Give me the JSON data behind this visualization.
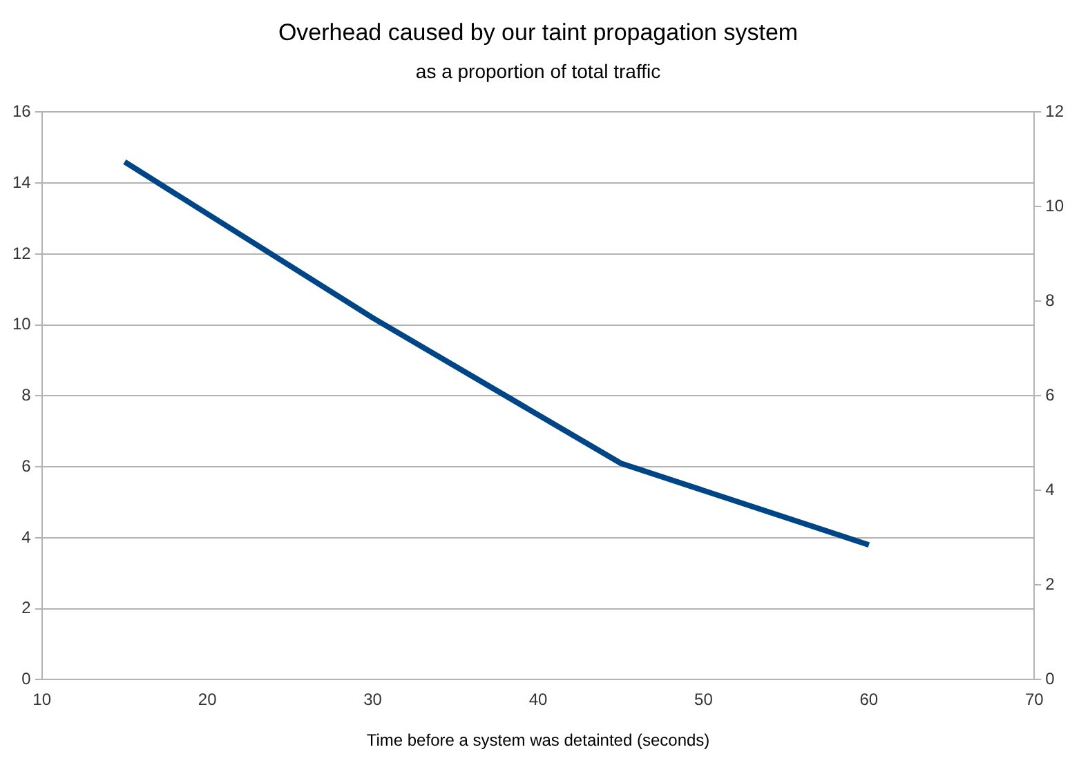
{
  "chart_data": {
    "type": "line",
    "title": "Overhead caused by our taint propagation system",
    "subtitle": "as a proportion of total traffic",
    "xlabel": "Time before a system was detainted (seconds)",
    "x": [
      15,
      30,
      45,
      60
    ],
    "series": [
      {
        "color": "#004586",
        "values": [
          14.6,
          10.2,
          6.1,
          3.8
        ]
      }
    ],
    "xlim": [
      10,
      70
    ],
    "xticks": [
      10,
      20,
      30,
      40,
      50,
      60,
      70
    ],
    "ylim": [
      0,
      16
    ],
    "yticks": [
      0,
      2,
      4,
      6,
      8,
      10,
      12,
      14,
      16
    ],
    "y2lim": [
      0,
      12
    ],
    "y2ticks": [
      0,
      2,
      4,
      6,
      8,
      10,
      12
    ],
    "grid": "y",
    "legend": false,
    "marker": "none",
    "line_style": "solid"
  }
}
